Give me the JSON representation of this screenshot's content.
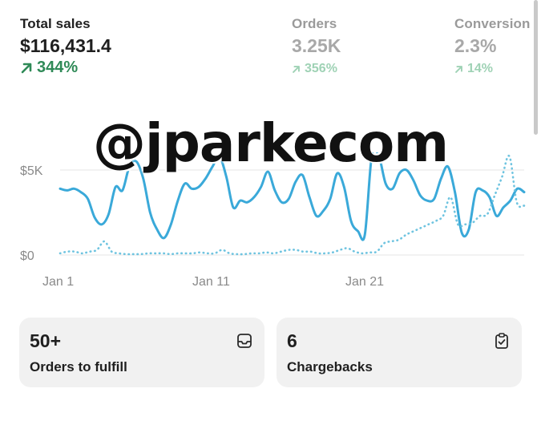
{
  "metrics": {
    "total_sales": {
      "label": "Total sales",
      "value": "$116,431.4",
      "change": "344%"
    },
    "orders": {
      "label": "Orders",
      "value": "3.25K",
      "change": "356%"
    },
    "conversion": {
      "label": "Conversion",
      "value": "2.3%",
      "change": "14%"
    }
  },
  "watermark": "@jparkecom",
  "chart_data": {
    "type": "line",
    "y_ticks": [
      "$5K",
      "$0"
    ],
    "x_ticks": [
      "Jan 1",
      "Jan 11",
      "Jan 21"
    ],
    "ylim": [
      0,
      6000
    ],
    "grid": true,
    "series": [
      {
        "style": "solid",
        "color": "#3aa9d9",
        "values": [
          3900,
          3800,
          3900,
          3700,
          3300,
          2200,
          1800,
          2400,
          4000,
          3800,
          5200,
          5500,
          4500,
          2500,
          1500,
          1000,
          1800,
          3200,
          4200,
          3900,
          4000,
          4500,
          5200,
          5800,
          4600,
          2800,
          3200,
          3100,
          3400,
          4000,
          4900,
          3800,
          3100,
          3300,
          4300,
          4700,
          3400,
          2300,
          2600,
          3300,
          4800,
          4000,
          2000,
          1400,
          1200,
          5900,
          6100,
          4200,
          3900,
          4800,
          5000,
          4400,
          3500,
          3200,
          3300,
          4500,
          5200,
          3700,
          1300,
          1500,
          3700,
          3800,
          3400,
          2300,
          2800,
          3200,
          3900,
          3700
        ]
      },
      {
        "style": "dotted",
        "color": "#6fc4e0",
        "values": [
          100,
          200,
          200,
          100,
          200,
          300,
          800,
          200,
          100,
          50,
          50,
          50,
          100,
          100,
          100,
          50,
          100,
          100,
          100,
          150,
          100,
          100,
          300,
          100,
          50,
          50,
          100,
          100,
          150,
          100,
          200,
          300,
          300,
          200,
          200,
          100,
          100,
          150,
          300,
          400,
          200,
          100,
          150,
          200,
          700,
          800,
          900,
          1200,
          1400,
          1600,
          1800,
          2000,
          2300,
          3400,
          1800,
          1800,
          1900,
          2300,
          2400,
          3500,
          4600,
          5800,
          3100,
          2900
        ]
      }
    ]
  },
  "cards": [
    {
      "value": "50+",
      "label": "Orders to fulfill",
      "icon": "inbox-icon"
    },
    {
      "value": "6",
      "label": "Chargebacks",
      "icon": "clipboard-check-icon"
    }
  ],
  "colors": {
    "accent_green": "#2f8a57",
    "muted_green": "#9fd2b5",
    "line_blue": "#3aa9d9",
    "card_bg": "#f1f1f1"
  }
}
